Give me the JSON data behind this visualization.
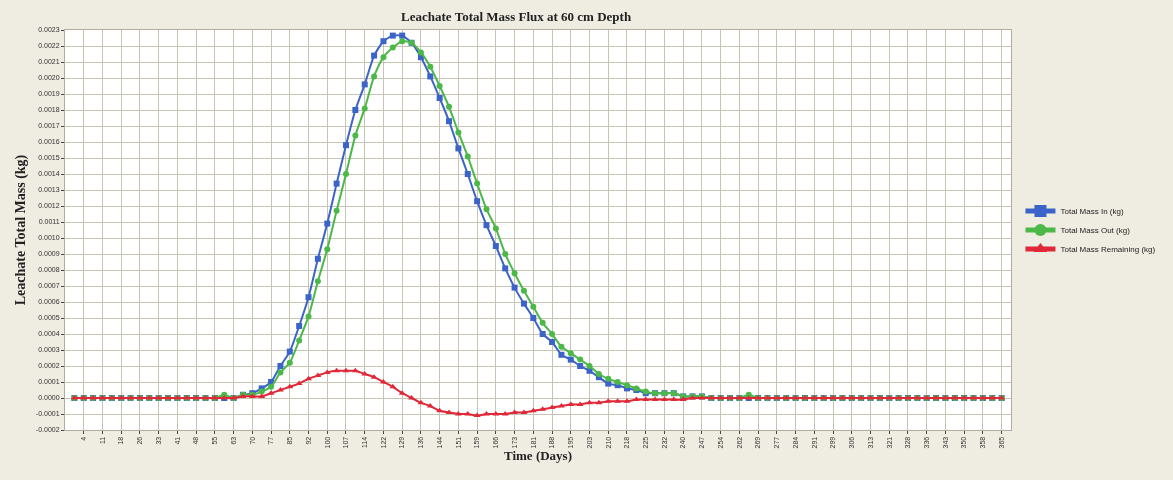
{
  "chart_data": {
    "type": "line",
    "title": "Leachate Total Mass Flux at 60 cm Depth",
    "xlabel": "Time (Days)",
    "ylabel": "Leachate Total Mass (kg)",
    "categories": [
      null,
      "4",
      null,
      "11",
      null,
      "18",
      null,
      "26",
      null,
      "33",
      null,
      "41",
      null,
      "48",
      null,
      "55",
      null,
      "63",
      null,
      "70",
      null,
      "77",
      null,
      "85",
      null,
      "92",
      null,
      "100",
      null,
      "107",
      null,
      "114",
      null,
      "122",
      null,
      "129",
      null,
      "136",
      null,
      "144",
      null,
      "151",
      null,
      "159",
      null,
      "166",
      null,
      "173",
      null,
      "181",
      null,
      "188",
      null,
      "195",
      null,
      "203",
      null,
      "210",
      null,
      "218",
      null,
      "225",
      null,
      "232",
      null,
      "240",
      null,
      "247",
      null,
      "254",
      null,
      "262",
      null,
      "269",
      null,
      "277",
      null,
      "284",
      null,
      "291",
      null,
      "299",
      null,
      "306",
      null,
      "313",
      null,
      "321",
      null,
      "328",
      null,
      "336",
      null,
      "343",
      null,
      "350",
      null,
      "358",
      null,
      "365"
    ],
    "series": [
      {
        "name": "Total Mass In (kg)",
        "color": "#3c64c8",
        "marker": "square",
        "values": [
          0,
          0,
          0,
          0,
          0,
          0,
          0,
          0,
          0,
          0,
          0,
          0,
          0,
          0,
          0,
          0,
          0,
          0,
          2e-05,
          3e-05,
          6e-05,
          0.0001,
          0.0002,
          0.00029,
          0.00045,
          0.00063,
          0.00087,
          0.00109,
          0.00134,
          0.00158,
          0.0018,
          0.00196,
          0.00214,
          0.00223,
          0.002265,
          0.002265,
          0.00222,
          0.00213,
          0.00201,
          0.001875,
          0.00173,
          0.00156,
          0.0014,
          0.00123,
          0.00108,
          0.00095,
          0.00081,
          0.00069,
          0.00059,
          0.0005,
          0.0004,
          0.00035,
          0.00027,
          0.00024,
          0.0002,
          0.00017,
          0.00013,
          9e-05,
          8e-05,
          6e-05,
          5e-05,
          3e-05,
          3e-05,
          3e-05,
          3e-05,
          1e-05,
          1e-05,
          1e-05,
          0,
          0,
          0,
          0,
          0,
          0,
          0,
          0,
          0,
          0,
          0,
          0,
          0,
          0,
          0,
          0,
          0,
          0,
          0,
          0,
          0,
          0,
          0,
          0,
          0,
          0,
          0,
          0,
          0,
          0,
          0,
          0
        ]
      },
      {
        "name": "Total Mass Out (kg)",
        "color": "#4cb848",
        "marker": "circle",
        "values": [
          0,
          0,
          0,
          0,
          0,
          0,
          0,
          0,
          0,
          0,
          0,
          0,
          0,
          0,
          0,
          0,
          2e-05,
          0,
          2e-05,
          2e-05,
          4e-05,
          7e-05,
          0.00016,
          0.00022,
          0.00036,
          0.00051,
          0.00073,
          0.00093,
          0.00117,
          0.0014,
          0.00164,
          0.00181,
          0.00201,
          0.00213,
          0.00219,
          0.00223,
          0.00222,
          0.00216,
          0.00207,
          0.00195,
          0.00182,
          0.00166,
          0.00151,
          0.00134,
          0.00118,
          0.00106,
          0.0009,
          0.00078,
          0.00067,
          0.00057,
          0.00047,
          0.0004,
          0.00032,
          0.00028,
          0.00024,
          0.0002,
          0.00015,
          0.00012,
          0.0001,
          8e-05,
          6e-05,
          4e-05,
          3e-05,
          3e-05,
          3e-05,
          1e-05,
          1e-05,
          1e-05,
          0,
          0,
          0,
          0,
          2e-05,
          0,
          0,
          0,
          0,
          0,
          0,
          0,
          0,
          0,
          0,
          0,
          0,
          0,
          0,
          0,
          0,
          0,
          0,
          0,
          0,
          0,
          0,
          0,
          0,
          0,
          0,
          0
        ]
      },
      {
        "name": "Total Mass Remaining (kg)",
        "color": "#e02838",
        "marker": "triangle",
        "values": [
          0,
          0,
          0,
          0,
          0,
          0,
          0,
          0,
          0,
          0,
          0,
          0,
          0,
          0,
          0,
          0,
          0,
          0,
          1e-05,
          1e-05,
          1e-05,
          3e-05,
          5e-05,
          7e-05,
          9e-05,
          0.00012,
          0.00014,
          0.00016,
          0.00017,
          0.00017,
          0.00017,
          0.00015,
          0.00013,
          0.0001,
          7e-05,
          3e-05,
          0,
          -3e-05,
          -5e-05,
          -8e-05,
          -9e-05,
          -0.0001,
          -0.0001,
          -0.00011,
          -0.0001,
          -0.0001,
          -0.0001,
          -9e-05,
          -9e-05,
          -8e-05,
          -7e-05,
          -6e-05,
          -5e-05,
          -4e-05,
          -4e-05,
          -3e-05,
          -3e-05,
          -2e-05,
          -2e-05,
          -2e-05,
          -1e-05,
          -1e-05,
          -1e-05,
          -1e-05,
          -1e-05,
          -1e-05,
          0,
          0,
          0,
          0,
          0,
          0,
          0,
          0,
          0,
          0,
          0,
          0,
          0,
          0,
          0,
          0,
          0,
          0,
          0,
          0,
          0,
          0,
          0,
          0,
          0,
          0,
          0,
          0,
          0,
          0,
          0,
          0,
          0,
          0
        ]
      }
    ],
    "ylim": [
      -0.0002,
      0.0023
    ],
    "yticks": [
      {
        "value": -0.0002,
        "label": "-0.0002"
      },
      {
        "value": -0.0001,
        "label": "-0.0001"
      },
      {
        "value": 0,
        "label": "0.0000"
      },
      {
        "value": 0.0001,
        "label": "0.0001"
      },
      {
        "value": 0.0002,
        "label": "0.0002"
      },
      {
        "value": 0.0003,
        "label": "0.0003"
      },
      {
        "value": 0.0004,
        "label": "0.0004"
      },
      {
        "value": 0.0005,
        "label": "0.0005"
      },
      {
        "value": 0.0006,
        "label": "0.0006"
      },
      {
        "value": 0.0007,
        "label": "0.0007"
      },
      {
        "value": 0.0008,
        "label": "0.0008"
      },
      {
        "value": 0.0009,
        "label": "0.0009"
      },
      {
        "value": 0.001,
        "label": "0.0010"
      },
      {
        "value": 0.0011,
        "label": "0.0011"
      },
      {
        "value": 0.0012,
        "label": "0.0012"
      },
      {
        "value": 0.0013,
        "label": "0.0013"
      },
      {
        "value": 0.0014,
        "label": "0.0014"
      },
      {
        "value": 0.0015,
        "label": "0.0015"
      },
      {
        "value": 0.0016,
        "label": "0.0016"
      },
      {
        "value": 0.0017,
        "label": "0.0017"
      },
      {
        "value": 0.0018,
        "label": "0.0018"
      },
      {
        "value": 0.0019,
        "label": "0.0019"
      },
      {
        "value": 0.002,
        "label": "0.0020"
      },
      {
        "value": 0.0021,
        "label": "0.0021"
      },
      {
        "value": 0.0022,
        "label": "0.0022"
      },
      {
        "value": 0.0023,
        "label": "0.0023"
      }
    ],
    "grid": true,
    "legend": "right",
    "line_style": "solid"
  }
}
